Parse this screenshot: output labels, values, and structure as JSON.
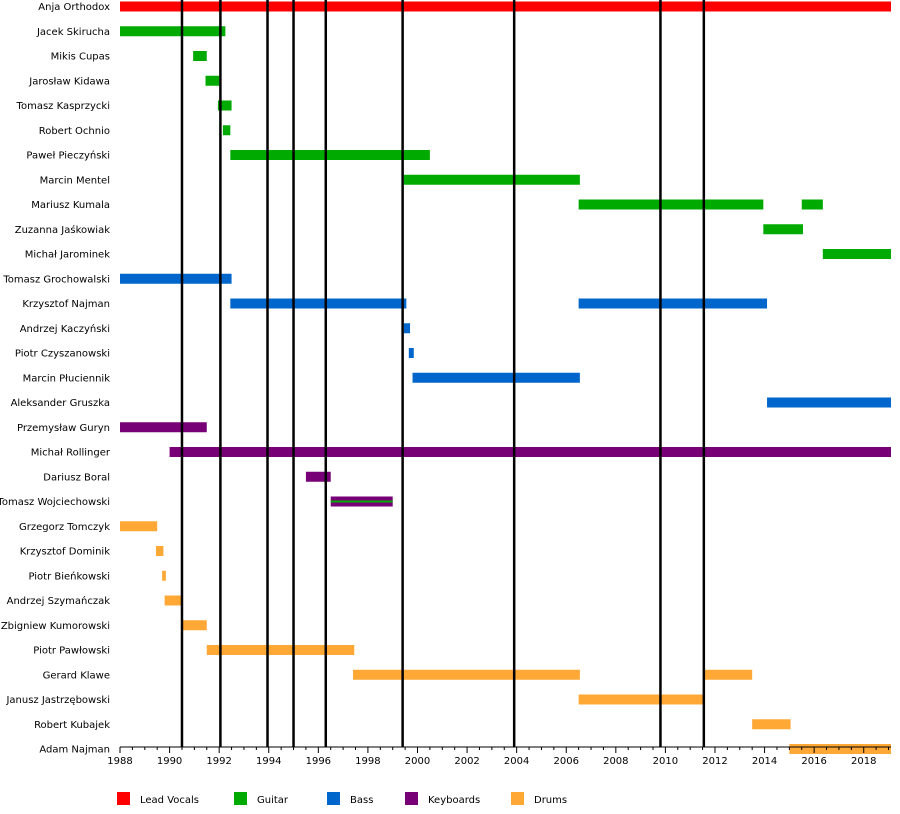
{
  "chart_data": {
    "type": "timeline",
    "x_range": [
      1988,
      2019.1
    ],
    "x_ticks": [
      1988,
      1990,
      1992,
      1994,
      1996,
      1998,
      2000,
      2002,
      2004,
      2006,
      2008,
      2010,
      2012,
      2014,
      2016,
      2018
    ],
    "x_tick_labels": [
      "1988",
      "1990",
      "1992",
      "1994",
      "1996",
      "1998",
      "2000",
      "2002",
      "2004",
      "2006",
      "2008",
      "2010",
      "2012",
      "2014",
      "2016",
      "2018"
    ],
    "album_lines": [
      1990.5,
      1992.05,
      1993.95,
      1995.0,
      1996.3,
      1999.4,
      2003.9,
      2009.8,
      2011.55
    ],
    "roles": [
      {
        "id": "vocals",
        "label": "Lead Vocals",
        "color": "#ff0000"
      },
      {
        "id": "guitar",
        "label": "Guitar",
        "color": "#00aa00"
      },
      {
        "id": "bass",
        "label": "Bass",
        "color": "#0066cc"
      },
      {
        "id": "keyboards",
        "label": "Keyboards",
        "color": "#770077"
      },
      {
        "id": "drums",
        "label": "Drums",
        "color": "#ffa836"
      }
    ],
    "members": [
      {
        "name": "Anja Orthodox",
        "periods": [
          {
            "role": "vocals",
            "start": 1988,
            "end": 2019.1
          }
        ]
      },
      {
        "name": "Jacek Skirucha",
        "periods": [
          {
            "role": "guitar",
            "start": 1988,
            "end": 1992.25
          }
        ]
      },
      {
        "name": "Mikis Cupas",
        "periods": [
          {
            "role": "guitar",
            "start": 1990.95,
            "end": 1991.5
          }
        ]
      },
      {
        "name": "Jarosław Kidawa",
        "periods": [
          {
            "role": "guitar",
            "start": 1991.45,
            "end": 1992.0
          }
        ]
      },
      {
        "name": "Tomasz Kasprzycki",
        "periods": [
          {
            "role": "guitar",
            "start": 1991.95,
            "end": 1992.5
          }
        ]
      },
      {
        "name": "Robert Ochnio",
        "periods": [
          {
            "role": "guitar",
            "start": 1992.15,
            "end": 1992.45
          }
        ]
      },
      {
        "name": "Paweł Pieczyński",
        "periods": [
          {
            "role": "guitar",
            "start": 1992.45,
            "end": 2000.5
          }
        ]
      },
      {
        "name": "Marcin Mentel",
        "periods": [
          {
            "role": "guitar",
            "start": 1999.45,
            "end": 2006.55
          }
        ]
      },
      {
        "name": "Mariusz Kumala",
        "periods": [
          {
            "role": "guitar",
            "start": 2006.5,
            "end": 2013.95
          },
          {
            "role": "guitar",
            "start": 2015.5,
            "end": 2016.35
          }
        ]
      },
      {
        "name": "Zuzanna Jaśkowiak",
        "periods": [
          {
            "role": "guitar",
            "start": 2013.95,
            "end": 2015.55
          }
        ]
      },
      {
        "name": "Michał Jarominek",
        "periods": [
          {
            "role": "guitar",
            "start": 2016.35,
            "end": 2019.1
          }
        ]
      },
      {
        "name": "Tomasz Grochowalski",
        "periods": [
          {
            "role": "bass",
            "start": 1988,
            "end": 1992.5
          }
        ]
      },
      {
        "name": "Krzysztof Najman",
        "periods": [
          {
            "role": "bass",
            "start": 1992.45,
            "end": 1999.55
          },
          {
            "role": "bass",
            "start": 2006.5,
            "end": 2014.1
          }
        ]
      },
      {
        "name": "Andrzej Kaczyński",
        "periods": [
          {
            "role": "bass",
            "start": 1999.45,
            "end": 1999.7
          }
        ]
      },
      {
        "name": "Piotr Czyszanowski",
        "periods": [
          {
            "role": "bass",
            "start": 1999.65,
            "end": 1999.85
          }
        ]
      },
      {
        "name": "Marcin Płuciennik",
        "periods": [
          {
            "role": "bass",
            "start": 1999.8,
            "end": 2006.55
          }
        ]
      },
      {
        "name": "Aleksander Gruszka",
        "periods": [
          {
            "role": "bass",
            "start": 2014.1,
            "end": 2019.1
          }
        ]
      },
      {
        "name": "Przemysław Guryn",
        "periods": [
          {
            "role": "keyboards",
            "start": 1988,
            "end": 1991.5
          }
        ]
      },
      {
        "name": "Michał Rollinger",
        "periods": [
          {
            "role": "keyboards",
            "start": 1990.0,
            "end": 2019.1
          }
        ]
      },
      {
        "name": "Dariusz Boral",
        "periods": [
          {
            "role": "keyboards",
            "start": 1995.5,
            "end": 1996.5
          }
        ]
      },
      {
        "name": "Tomasz Wojciechowski",
        "periods": [
          {
            "role": "keyboards",
            "start": 1996.5,
            "end": 1999.0,
            "overlay": "guitar"
          }
        ]
      },
      {
        "name": "Grzegorz Tomczyk",
        "periods": [
          {
            "role": "drums",
            "start": 1988,
            "end": 1989.5
          }
        ]
      },
      {
        "name": "Krzysztof Dominik",
        "periods": [
          {
            "role": "drums",
            "start": 1989.45,
            "end": 1989.75
          }
        ]
      },
      {
        "name": "Piotr Bieńkowski",
        "periods": [
          {
            "role": "drums",
            "start": 1989.7,
            "end": 1989.85
          }
        ]
      },
      {
        "name": "Andrzej Szymańczak",
        "periods": [
          {
            "role": "drums",
            "start": 1989.8,
            "end": 1990.5
          }
        ]
      },
      {
        "name": "Zbigniew Kumorowski",
        "periods": [
          {
            "role": "drums",
            "start": 1990.5,
            "end": 1991.5
          }
        ]
      },
      {
        "name": "Piotr Pawłowski",
        "periods": [
          {
            "role": "drums",
            "start": 1991.5,
            "end": 1997.45
          }
        ]
      },
      {
        "name": "Gerard Klawe",
        "periods": [
          {
            "role": "drums",
            "start": 1997.4,
            "end": 2006.55
          },
          {
            "role": "drums",
            "start": 2011.55,
            "end": 2013.5
          }
        ]
      },
      {
        "name": "Janusz Jastrzębowski",
        "periods": [
          {
            "role": "drums",
            "start": 2006.5,
            "end": 2011.55
          }
        ]
      },
      {
        "name": "Robert Kubajek",
        "periods": [
          {
            "role": "drums",
            "start": 2013.5,
            "end": 2015.05
          }
        ]
      },
      {
        "name": "Adam Najman",
        "periods": [
          {
            "role": "drums",
            "start": 2015.0,
            "end": 2019.1
          }
        ]
      }
    ]
  }
}
